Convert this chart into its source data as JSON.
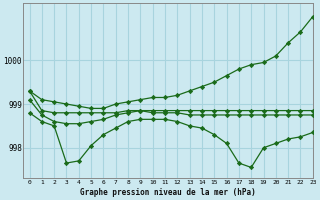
{
  "title": "Graphe pression niveau de la mer (hPa)",
  "background_color": "#cce9f0",
  "grid_color": "#a8d4de",
  "line_color": "#1a6b1a",
  "xlim": [
    -0.5,
    23
  ],
  "ylim": [
    997.3,
    1001.3
  ],
  "xticks": [
    0,
    1,
    2,
    3,
    4,
    5,
    6,
    7,
    8,
    9,
    10,
    11,
    12,
    13,
    14,
    15,
    16,
    17,
    18,
    19,
    20,
    21,
    22,
    23
  ],
  "yticks": [
    998,
    999,
    1000
  ],
  "series": [
    {
      "x": [
        0,
        1,
        2,
        3,
        4,
        5,
        6,
        7,
        8,
        9,
        10,
        11,
        12,
        13,
        14,
        15,
        16,
        17,
        18,
        19,
        20,
        21,
        22,
        23
      ],
      "y": [
        999.3,
        998.85,
        998.8,
        998.8,
        998.8,
        998.8,
        998.8,
        998.8,
        998.85,
        998.85,
        998.85,
        998.85,
        998.85,
        998.85,
        998.85,
        998.85,
        998.85,
        998.85,
        998.85,
        998.85,
        998.85,
        998.85,
        998.85,
        998.85
      ]
    },
    {
      "x": [
        0,
        1,
        2,
        3,
        4,
        5,
        6,
        7,
        8,
        9,
        10,
        11,
        12,
        13,
        14,
        15,
        16,
        17,
        18,
        19,
        20,
        21,
        22,
        23
      ],
      "y": [
        999.1,
        998.75,
        998.6,
        998.55,
        998.55,
        998.6,
        998.65,
        998.75,
        998.8,
        998.85,
        998.8,
        998.8,
        998.8,
        998.75,
        998.75,
        998.75,
        998.75,
        998.75,
        998.75,
        998.75,
        998.75,
        998.75,
        998.75,
        998.75
      ]
    },
    {
      "x": [
        0,
        1,
        2,
        3,
        4,
        5,
        6,
        7,
        8,
        9,
        10,
        11,
        12,
        13,
        14,
        15,
        16,
        17,
        18,
        19,
        20,
        21,
        22,
        23
      ],
      "y": [
        999.3,
        999.1,
        999.05,
        999.0,
        998.95,
        998.9,
        998.9,
        999.0,
        999.05,
        999.1,
        999.15,
        999.15,
        999.2,
        999.3,
        999.4,
        999.5,
        999.65,
        999.8,
        999.9,
        999.95,
        1000.1,
        1000.4,
        1000.65,
        1001.0
      ]
    },
    {
      "x": [
        0,
        1,
        2,
        3,
        4,
        5,
        6,
        7,
        8,
        9,
        10,
        11,
        12,
        13,
        14,
        15,
        16,
        17,
        18,
        19,
        20,
        21,
        22,
        23
      ],
      "y": [
        998.8,
        998.6,
        998.5,
        997.65,
        997.7,
        998.05,
        998.3,
        998.45,
        998.6,
        998.65,
        998.65,
        998.65,
        998.6,
        998.5,
        998.45,
        998.3,
        998.1,
        997.65,
        997.55,
        998.0,
        998.1,
        998.2,
        998.25,
        998.35
      ]
    }
  ]
}
